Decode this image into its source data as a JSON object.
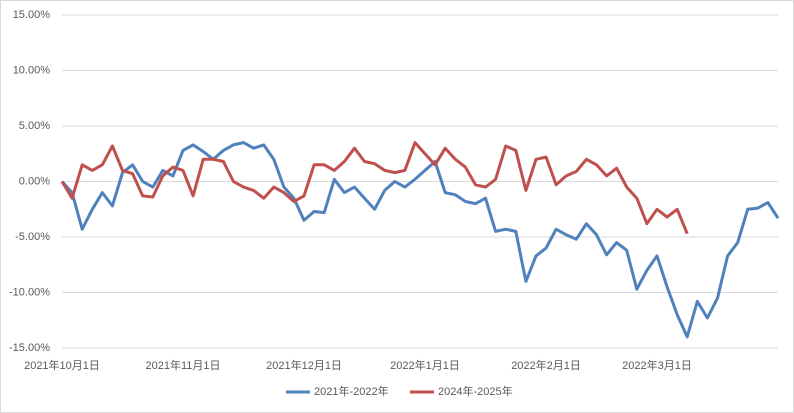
{
  "chart_data": {
    "type": "line",
    "categories": [
      "2021年10月1日",
      null,
      null,
      null,
      null,
      null,
      null,
      null,
      null,
      null,
      null,
      null,
      "2021年11月1日",
      null,
      null,
      null,
      null,
      null,
      null,
      null,
      null,
      null,
      null,
      null,
      "2021年12月1日",
      null,
      null,
      null,
      null,
      null,
      null,
      null,
      null,
      null,
      null,
      null,
      "2022年1月1日",
      null,
      null,
      null,
      null,
      null,
      null,
      null,
      null,
      null,
      null,
      null,
      "2022年2月1日",
      null,
      null,
      null,
      null,
      null,
      null,
      null,
      null,
      null,
      null,
      "2022年3月1日",
      null,
      null,
      null,
      null,
      null,
      null,
      null,
      null,
      null,
      null,
      null,
      null
    ],
    "series": [
      {
        "name": "2021年-2022年",
        "color": "#4f81bd",
        "values": [
          0,
          -1,
          -4.3,
          -2.5,
          -1,
          -2.2,
          0.8,
          1.5,
          0,
          -0.5,
          1,
          0.5,
          2.8,
          3.3,
          2.7,
          2,
          2.8,
          3.3,
          3.5,
          3,
          3.3,
          2,
          -0.5,
          -1.5,
          -3.5,
          -2.7,
          -2.8,
          0.2,
          -1,
          -0.5,
          -1.5,
          -2.5,
          -0.8,
          0,
          -0.5,
          0.2,
          1,
          1.8,
          -1,
          -1.2,
          -1.8,
          -2,
          -1.5,
          -4.5,
          -4.3,
          -4.5,
          -9,
          -6.7,
          -6,
          -4.3,
          -4.8,
          -5.2,
          -3.8,
          -4.8,
          -6.6,
          -5.5,
          -6.2,
          -9.7,
          -8,
          -6.7,
          -9.5,
          -12,
          -14,
          -10.8,
          -12.3,
          -10.5,
          -6.7,
          -5.5,
          -2.5,
          -2.4,
          -1.9,
          -3.3
        ]
      },
      {
        "name": "2024年-2025年",
        "color": "#c0504d",
        "values": [
          0,
          -1.5,
          1.5,
          1,
          1.5,
          3.2,
          1,
          0.7,
          -1.3,
          -1.4,
          0.5,
          1.3,
          1,
          -1.3,
          2,
          2,
          1.8,
          0,
          -0.5,
          -0.8,
          -1.5,
          -0.5,
          -1,
          -1.8,
          -1.3,
          1.5,
          1.5,
          1,
          1.8,
          3,
          1.8,
          1.6,
          1,
          0.8,
          1,
          3.5,
          2.5,
          1.5,
          3,
          2,
          1.3,
          -0.3,
          -0.5,
          0.2,
          3.2,
          2.8,
          -0.8,
          2,
          2.2,
          -0.3,
          0.5,
          0.9,
          2,
          1.5,
          0.5,
          1.2,
          -0.5,
          -1.5,
          -3.8,
          -2.5,
          -3.2,
          -2.5,
          -4.7,
          null,
          null,
          null,
          null,
          null,
          null,
          null,
          null,
          null
        ]
      }
    ],
    "ylim": [
      -15,
      15
    ],
    "yticks": [
      {
        "value": -15,
        "label": "-15.00%"
      },
      {
        "value": -10,
        "label": "-10.00%"
      },
      {
        "value": -5,
        "label": "-5.00%"
      },
      {
        "value": 0,
        "label": "0.00%"
      },
      {
        "value": 5,
        "label": "5.00%"
      },
      {
        "value": 10,
        "label": "10.00%"
      },
      {
        "value": 15,
        "label": "15.00%"
      }
    ],
    "grid": true,
    "legend": "bottom"
  }
}
